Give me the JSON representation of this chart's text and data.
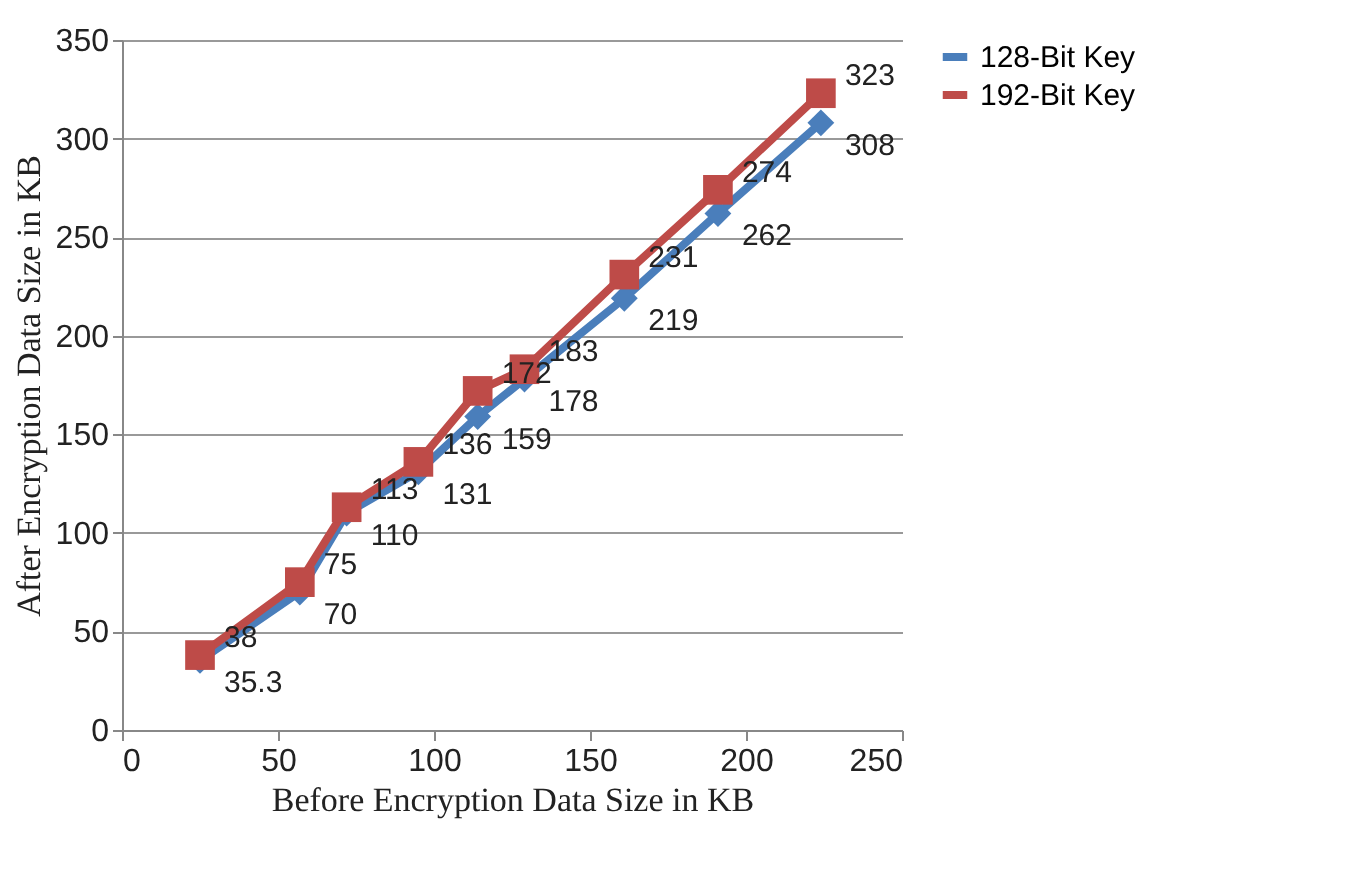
{
  "chart_data": {
    "type": "line",
    "xlabel": "Before Encryption Data Size in KB",
    "ylabel": "After Encryption Data Size in KB",
    "x": [
      25,
      57,
      72,
      95,
      114,
      129,
      161,
      191,
      224
    ],
    "series": [
      {
        "name": "128-Bit Key",
        "color": "#4a7ebb",
        "marker": "diamond",
        "values": [
          35.3,
          70,
          110,
          131,
          159,
          178,
          219,
          262,
          308
        ]
      },
      {
        "name": "192-Bit Key",
        "color": "#be4b48",
        "marker": "square",
        "values": [
          38,
          75,
          113,
          136,
          172,
          183,
          231,
          274,
          323
        ]
      }
    ],
    "xlim": [
      0,
      250
    ],
    "xticks": [
      0,
      50,
      100,
      150,
      200,
      250
    ],
    "ylim": [
      0,
      350
    ],
    "yticks": [
      0,
      50,
      100,
      150,
      200,
      250,
      300,
      350
    ],
    "grid": "y",
    "legend": "right",
    "data_labels": true,
    "line_style": "solid"
  }
}
